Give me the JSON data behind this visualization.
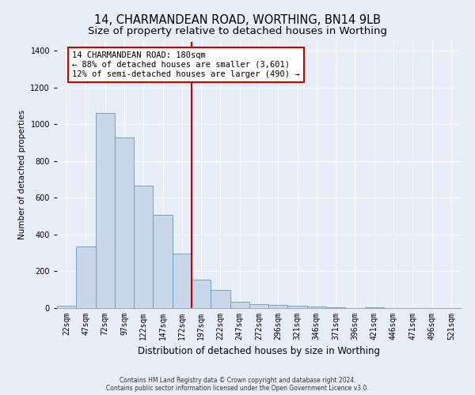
{
  "title": "14, CHARMANDEAN ROAD, WORTHING, BN14 9LB",
  "subtitle": "Size of property relative to detached houses in Worthing",
  "xlabel": "Distribution of detached houses by size in Worthing",
  "ylabel": "Number of detached properties",
  "footer_line1": "Contains HM Land Registry data © Crown copyright and database right 2024.",
  "footer_line2": "Contains public sector information licensed under the Open Government Licence v3.0.",
  "bar_labels": [
    "22sqm",
    "47sqm",
    "72sqm",
    "97sqm",
    "122sqm",
    "147sqm",
    "172sqm",
    "197sqm",
    "222sqm",
    "247sqm",
    "272sqm",
    "296sqm",
    "321sqm",
    "346sqm",
    "371sqm",
    "396sqm",
    "421sqm",
    "446sqm",
    "471sqm",
    "496sqm",
    "521sqm"
  ],
  "bar_values": [
    15,
    335,
    1060,
    930,
    665,
    505,
    295,
    155,
    100,
    35,
    20,
    18,
    15,
    10,
    5,
    0,
    5,
    0,
    0,
    0,
    0
  ],
  "bar_color": "#c8d8ea",
  "bar_edge_color": "#6699bb",
  "vline_color": "#cc0000",
  "annotation_line1": "14 CHARMANDEAN ROAD: 180sqm",
  "annotation_line2": "← 88% of detached houses are smaller (3,601)",
  "annotation_line3": "12% of semi-detached houses are larger (490) →",
  "annotation_box_facecolor": "#ffffff",
  "annotation_box_edgecolor": "#cc0000",
  "ylim": [
    0,
    1450
  ],
  "yticks": [
    0,
    200,
    400,
    600,
    800,
    1000,
    1200,
    1400
  ],
  "bg_color": "#e8eef8",
  "title_fontsize": 10.5,
  "subtitle_fontsize": 9.5,
  "xlabel_fontsize": 8.5,
  "ylabel_fontsize": 7.5,
  "tick_fontsize": 7,
  "annotation_fontsize": 7.5,
  "footer_fontsize": 5.5
}
